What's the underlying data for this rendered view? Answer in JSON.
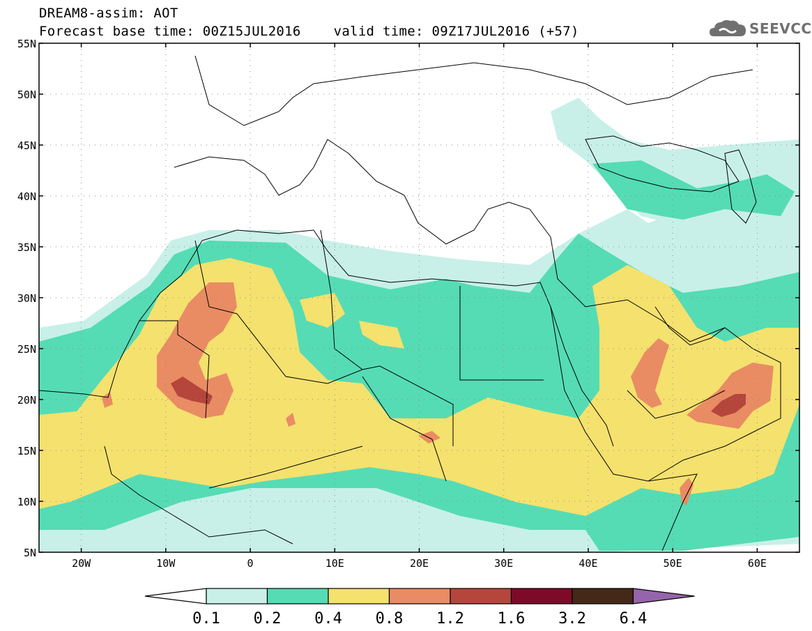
{
  "header": {
    "title_line1": "DREAM8-assim: AOT",
    "title_line2": "Forecast base time: 00Z15JUL2016    valid time: 09Z17JUL2016 (+57)",
    "logo_text": "SEEVCCC"
  },
  "map": {
    "lat_labels": [
      "55N",
      "50N",
      "45N",
      "40N",
      "35N",
      "30N",
      "25N",
      "20N",
      "15N",
      "10N",
      "5N"
    ],
    "lon_labels": [
      "20W",
      "10W",
      "0",
      "10E",
      "20E",
      "30E",
      "40E",
      "50E",
      "60E"
    ],
    "lon_range": [
      -25,
      65
    ],
    "lat_range": [
      5,
      55
    ]
  },
  "colorbar": {
    "labels": [
      "0.1",
      "0.2",
      "0.4",
      "0.8",
      "1.2",
      "1.6",
      "3.2",
      "6.4"
    ],
    "colors": [
      "#ffffff",
      "#c8f0e8",
      "#55dcb4",
      "#f5e16e",
      "#e98c64",
      "#b4463c",
      "#7d0a28",
      "#442818",
      "#9664aa"
    ]
  },
  "aot_colors": {
    "c1": "#c8f0e8",
    "c2": "#55dcb4",
    "c3": "#f5e16e",
    "c4": "#e98c64",
    "c5": "#b4463c"
  }
}
